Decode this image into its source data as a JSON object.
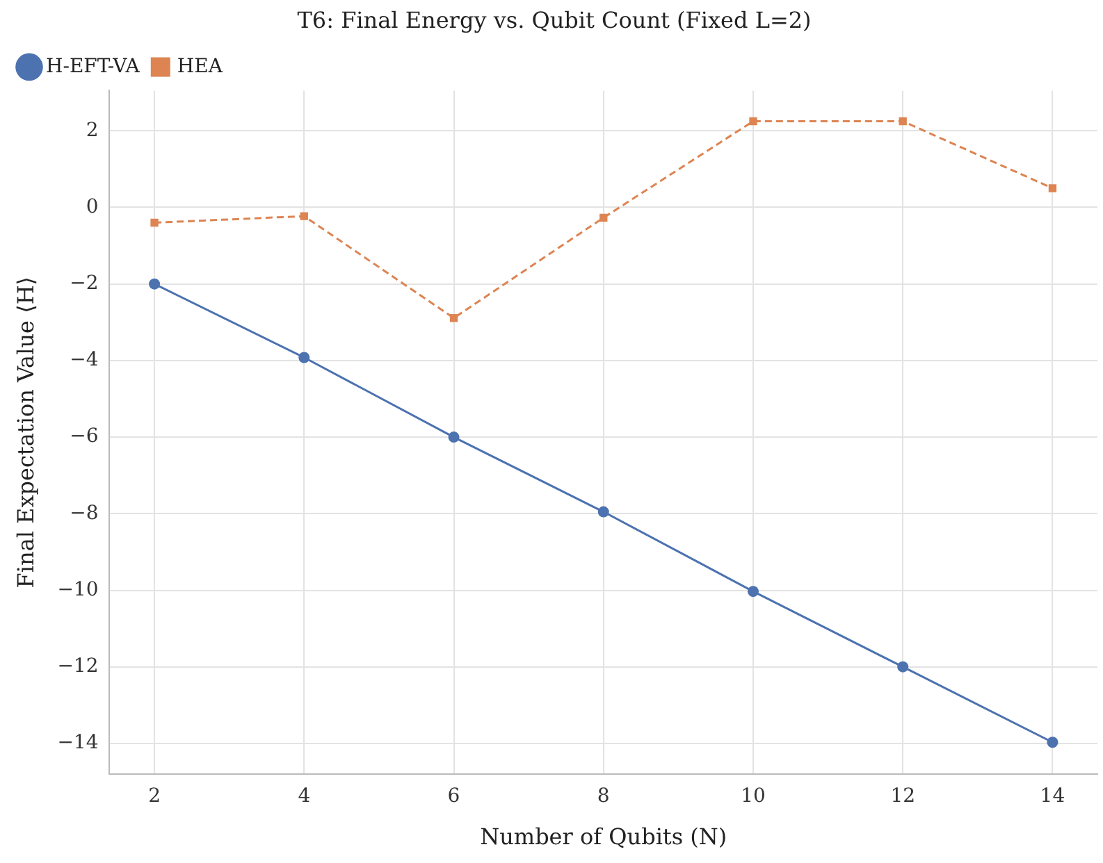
{
  "chart_data": {
    "type": "line",
    "title": "T6: Final Energy vs. Qubit Count (Fixed L=2)",
    "xlabel": "Number of Qubits (N)",
    "ylabel": "Final Expectation Value ⟨H⟩",
    "x": [
      2,
      4,
      6,
      8,
      10,
      12,
      14
    ],
    "series": [
      {
        "name": "H-EFT-VA",
        "color": "#4c72b0",
        "marker": "circle",
        "line_style": "solid",
        "values": [
          -2.0,
          -3.92,
          -6.0,
          -7.95,
          -10.03,
          -12.0,
          -13.97
        ]
      },
      {
        "name": "HEA",
        "color": "#dd8452",
        "marker": "square",
        "line_style": "dashed",
        "values": [
          -0.4,
          -0.23,
          -2.89,
          -0.27,
          2.25,
          2.25,
          0.5
        ]
      }
    ],
    "xlim": [
      1.4,
      14.6
    ],
    "xticks": [
      2,
      4,
      6,
      8,
      10,
      12,
      14
    ],
    "ylim": [
      -14.8,
      3.05
    ],
    "yticks": [
      -14,
      -12,
      -10,
      -8,
      -6,
      -4,
      -2,
      0,
      2
    ],
    "grid": true,
    "legend": "top left"
  }
}
